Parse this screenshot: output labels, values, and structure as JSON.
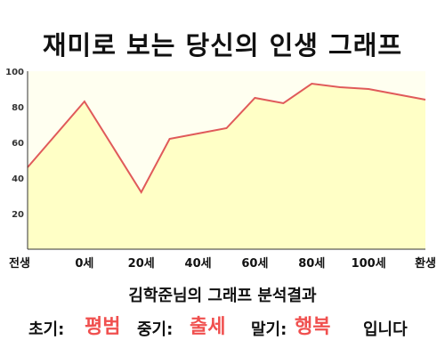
{
  "title": "재미로 보는 당신의 인생 그래프",
  "subtitle": "김학준님의 그래프 분석결과",
  "result": {
    "early_label": "초기:",
    "early_value": "평범",
    "mid_label": "중기:",
    "mid_value": "출세",
    "late_label": "말기:",
    "late_value": "행복",
    "suffix": "입니다"
  },
  "colors": {
    "line": "#e05a5a",
    "fill": "#ffffc6",
    "plot_bg": "#fffff0",
    "highlight_text": "#f0504f"
  },
  "chart_data": {
    "type": "area",
    "title": "재미로 보는 당신의 인생 그래프",
    "xlabel": "",
    "ylabel": "",
    "x": [
      -20,
      0,
      20,
      30,
      40,
      50,
      60,
      70,
      80,
      90,
      100,
      120
    ],
    "values": [
      46,
      83,
      32,
      62,
      65,
      68,
      85,
      82,
      93,
      91,
      90,
      84
    ],
    "xticks": [
      {
        "x": -20,
        "label": "전생"
      },
      {
        "x": 0,
        "label": "0세"
      },
      {
        "x": 20,
        "label": "20세"
      },
      {
        "x": 40,
        "label": "40세"
      },
      {
        "x": 60,
        "label": "60세"
      },
      {
        "x": 80,
        "label": "80세"
      },
      {
        "x": 100,
        "label": "100세"
      },
      {
        "x": 120,
        "label": "환생"
      }
    ],
    "yticks": [
      20,
      40,
      60,
      80,
      100
    ],
    "xlim": [
      -20,
      120
    ],
    "ylim": [
      0,
      100
    ],
    "grid": false,
    "legend": "none"
  }
}
